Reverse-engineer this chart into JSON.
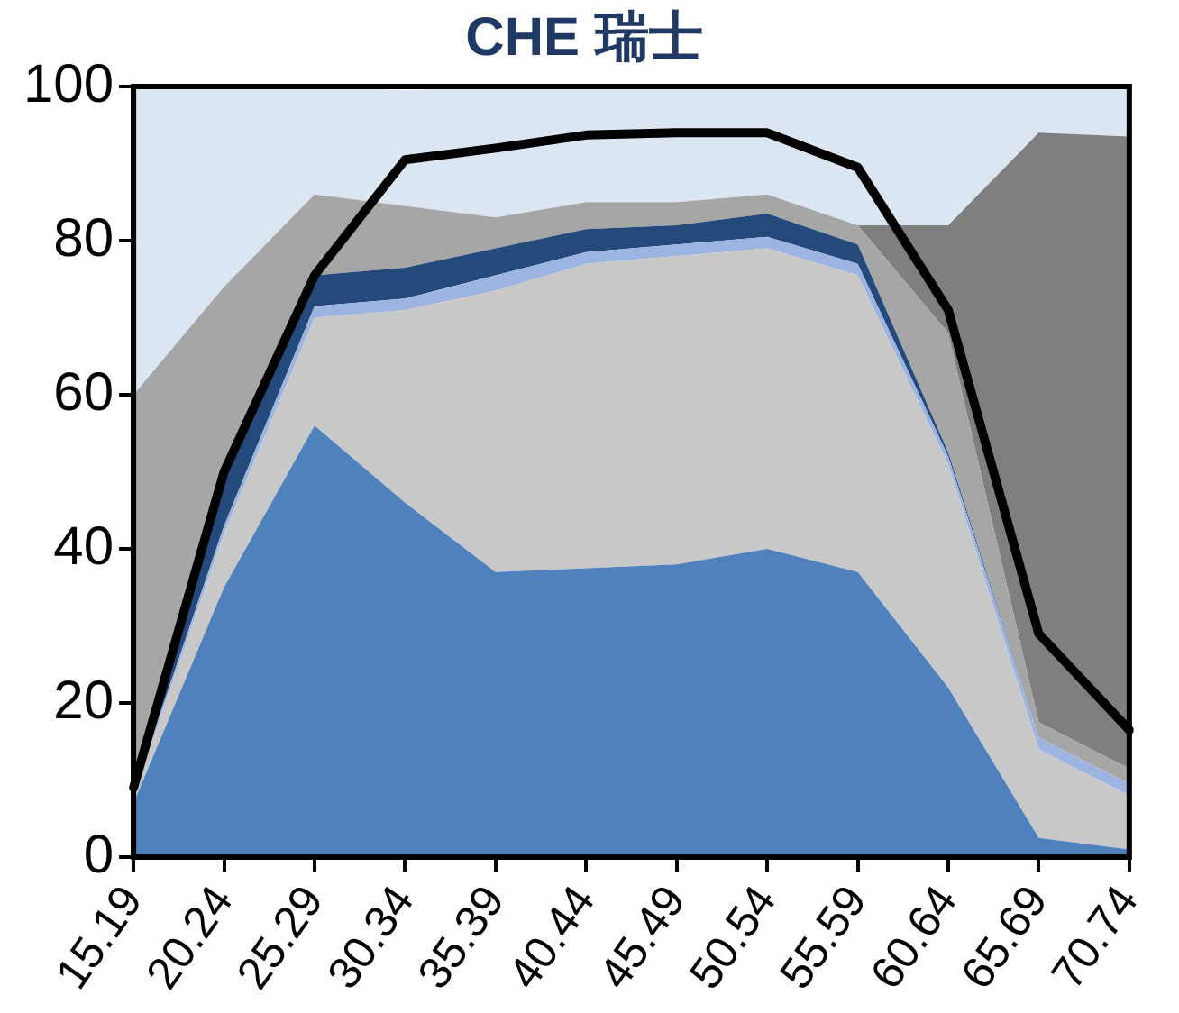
{
  "chart_data": {
    "type": "area",
    "title": "CHE 瑞士",
    "stacked": true,
    "categories": [
      "15.19",
      "20.24",
      "25.29",
      "30.34",
      "35.39",
      "40.44",
      "45.49",
      "50.54",
      "55.59",
      "60.64",
      "65.69",
      "70.74"
    ],
    "ylim": [
      0,
      100
    ],
    "yticks": [
      0,
      20,
      40,
      60,
      80,
      100
    ],
    "grid": false,
    "legend": false,
    "marker": "none",
    "series": [
      {
        "color": "#4f81bd",
        "values": [
          7,
          35,
          56,
          46,
          37,
          37.5,
          38,
          40,
          37,
          22,
          2.5,
          1
        ]
      },
      {
        "color": "#c8c8c8",
        "values": [
          1,
          7,
          14,
          25,
          36.5,
          39.5,
          40,
          39,
          38.5,
          29,
          11.5,
          7
        ]
      },
      {
        "color": "#9db3e0",
        "values": [
          0.5,
          1,
          1.5,
          1.5,
          2,
          1.5,
          1.5,
          1.5,
          1.5,
          1,
          1.5,
          1.5
        ]
      },
      {
        "color": "#244a7c",
        "values": [
          0.5,
          6,
          4,
          4,
          3.5,
          3,
          2.5,
          3,
          2.5,
          0.5,
          0,
          0
        ]
      },
      {
        "color": "#a6a6a6",
        "values": [
          51,
          25,
          10.5,
          8,
          4,
          3.5,
          3,
          2.5,
          2.5,
          15.5,
          2,
          2
        ]
      },
      {
        "color": "#7f7f7f",
        "values": [
          0,
          0,
          0,
          0,
          0,
          0,
          0,
          0,
          0,
          14,
          76.5,
          82
        ]
      },
      {
        "color": "#dce6f2",
        "values": [
          40,
          26,
          14,
          15,
          17,
          15,
          15,
          14,
          18,
          18,
          6,
          6.5
        ]
      },
      {
        "type": "line",
        "color": "#000000",
        "values": [
          9,
          50,
          75.5,
          90.5,
          92,
          93.7,
          94,
          94,
          89.5,
          71,
          29,
          16.5
        ]
      }
    ]
  }
}
